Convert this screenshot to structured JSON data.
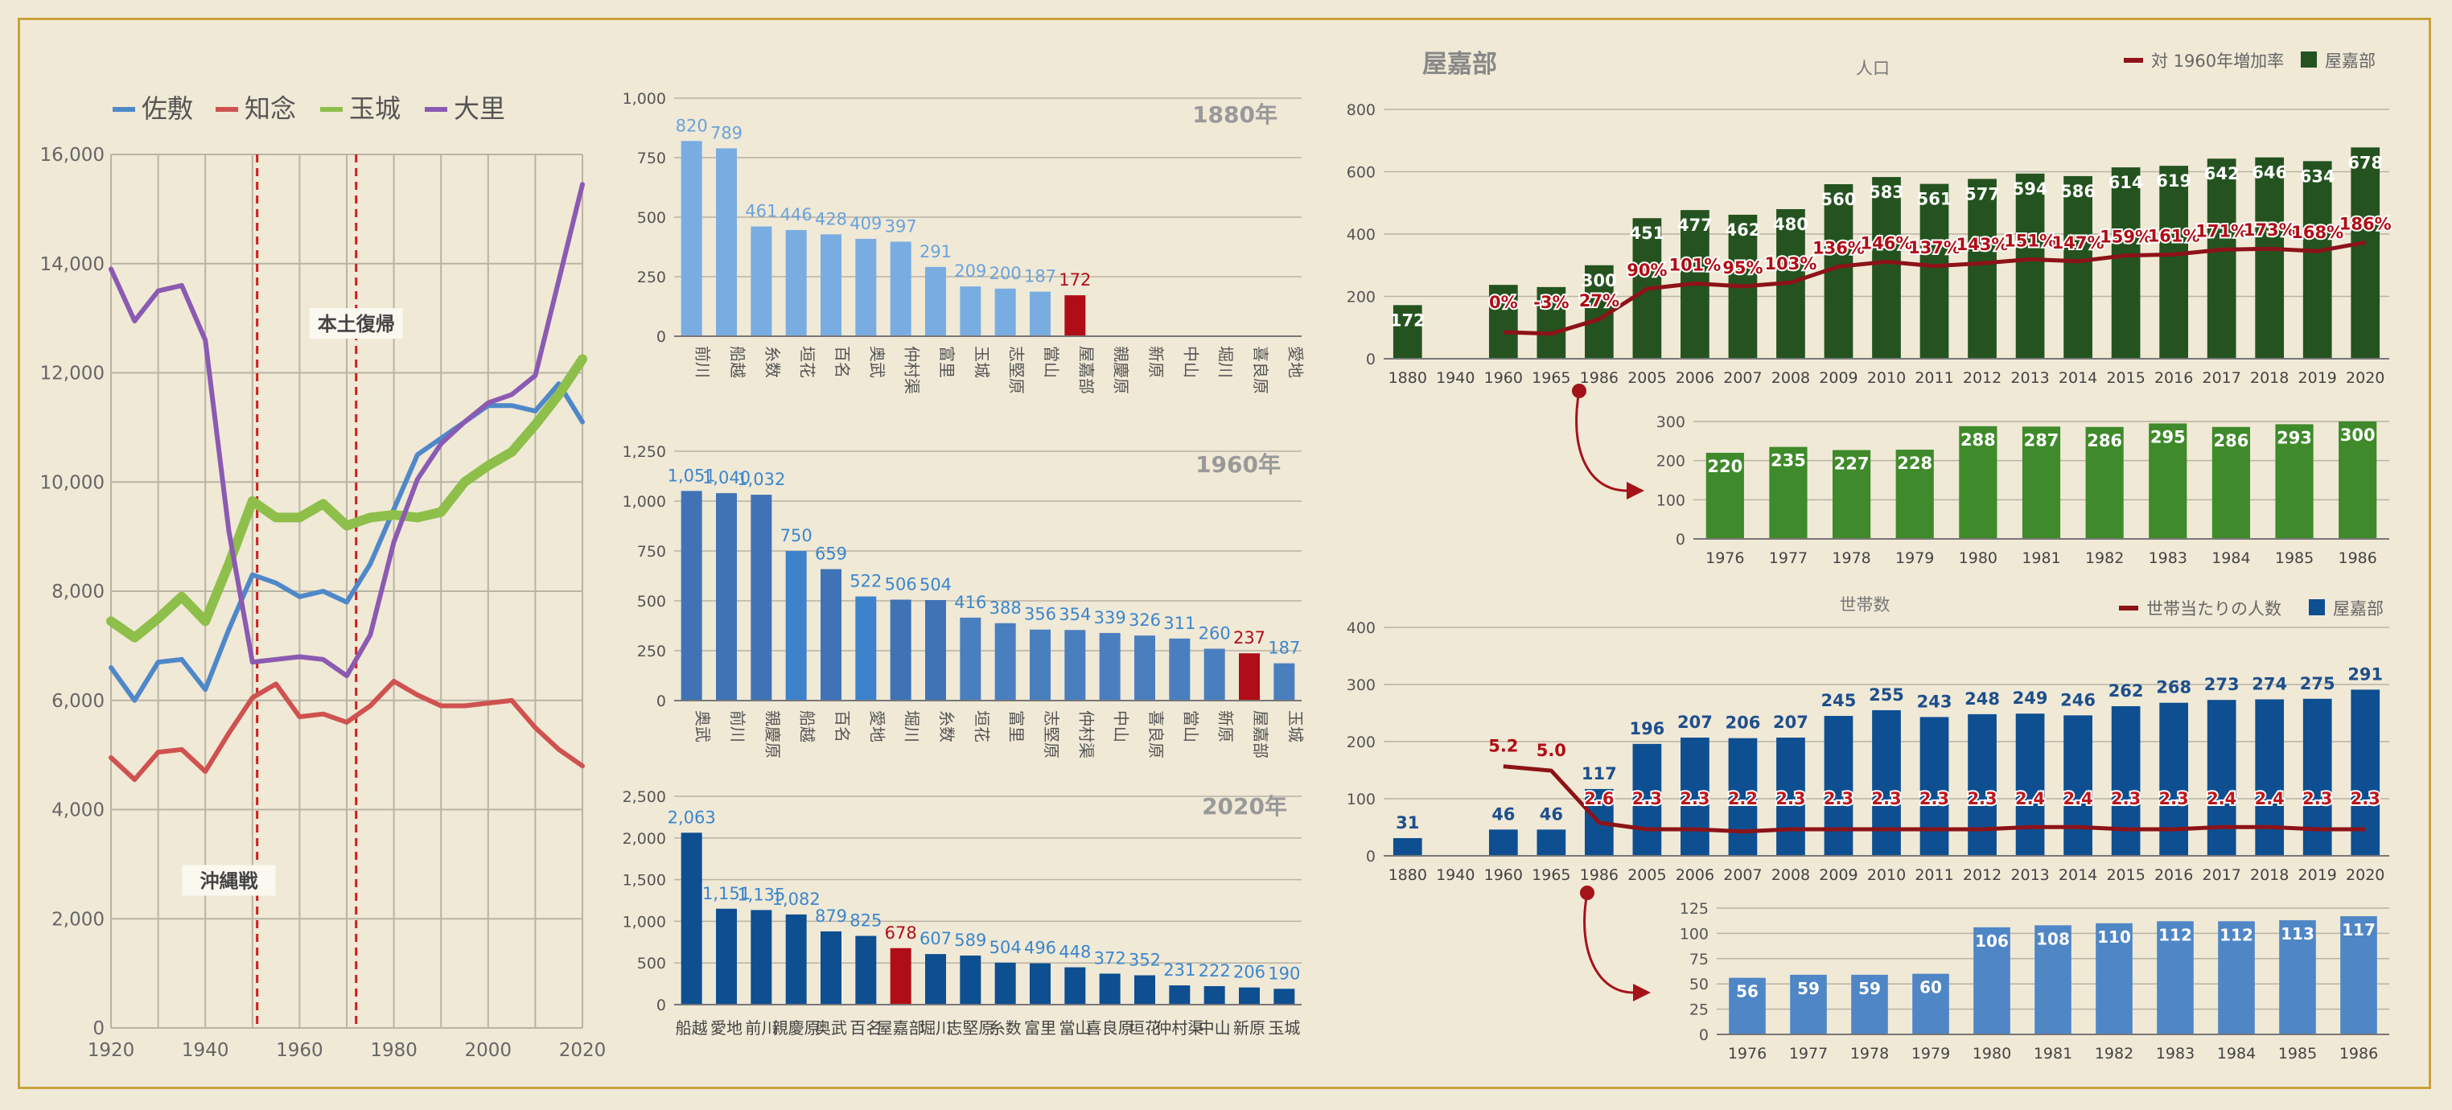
{
  "colors": {
    "background": "#f0e9d6",
    "frame": "#c9a13a",
    "highlight_red": "#b00d16",
    "grid": "#b9b3a4"
  },
  "chart_data": [
    {
      "id": "municipal-population-lines",
      "type": "line",
      "title": "",
      "xlabel": "",
      "ylabel": "",
      "xlim": [
        1920,
        2020
      ],
      "ylim": [
        0,
        16000
      ],
      "x_ticks": [
        1920,
        1940,
        1960,
        1980,
        2000,
        2020
      ],
      "x_tick_labels": [
        "1920",
        "1940",
        "1960",
        "1980",
        "2000",
        "2020"
      ],
      "y_ticks": [
        0,
        2000,
        4000,
        6000,
        8000,
        10000,
        12000,
        14000,
        16000
      ],
      "y_tick_labels": [
        "0",
        "2,000",
        "4,000",
        "6,000",
        "8,000",
        "10,000",
        "12,000",
        "14,000",
        "16,000"
      ],
      "grid": true,
      "legend_position": "top",
      "series": [
        {
          "name": "佐敷",
          "color": "#4f88c9",
          "width": 6,
          "points": [
            [
              1920,
              6600
            ],
            [
              1925,
              6000
            ],
            [
              1930,
              6700
            ],
            [
              1935,
              6750
            ],
            [
              1940,
              6200
            ],
            [
              1945,
              7300
            ],
            [
              1950,
              8300
            ],
            [
              1955,
              8150
            ],
            [
              1960,
              7900
            ],
            [
              1965,
              8000
            ],
            [
              1970,
              7800
            ],
            [
              1975,
              8500
            ],
            [
              1980,
              9500
            ],
            [
              1985,
              10500
            ],
            [
              1990,
              10800
            ],
            [
              1995,
              11100
            ],
            [
              2000,
              11400
            ],
            [
              2005,
              11400
            ],
            [
              2010,
              11300
            ],
            [
              2015,
              11800
            ],
            [
              2020,
              11100
            ]
          ]
        },
        {
          "name": "知念",
          "color": "#cf5250",
          "width": 6,
          "points": [
            [
              1920,
              4950
            ],
            [
              1925,
              4550
            ],
            [
              1930,
              5050
            ],
            [
              1935,
              5100
            ],
            [
              1940,
              4700
            ],
            [
              1945,
              5400
            ],
            [
              1950,
              6050
            ],
            [
              1955,
              6300
            ],
            [
              1960,
              5700
            ],
            [
              1965,
              5750
            ],
            [
              1970,
              5600
            ],
            [
              1975,
              5900
            ],
            [
              1980,
              6350
            ],
            [
              1985,
              6100
            ],
            [
              1990,
              5900
            ],
            [
              1995,
              5900
            ],
            [
              2000,
              5950
            ],
            [
              2005,
              6000
            ],
            [
              2010,
              5500
            ],
            [
              2015,
              5100
            ],
            [
              2020,
              4800
            ]
          ]
        },
        {
          "name": "玉城",
          "color": "#8dbf4a",
          "width": 12,
          "points": [
            [
              1920,
              7450
            ],
            [
              1925,
              7150
            ],
            [
              1930,
              7500
            ],
            [
              1935,
              7900
            ],
            [
              1940,
              7450
            ],
            [
              1945,
              8500
            ],
            [
              1950,
              9650
            ],
            [
              1955,
              9350
            ],
            [
              1960,
              9350
            ],
            [
              1965,
              9600
            ],
            [
              1970,
              9200
            ],
            [
              1975,
              9350
            ],
            [
              1980,
              9400
            ],
            [
              1985,
              9350
            ],
            [
              1990,
              9450
            ],
            [
              1995,
              10000
            ],
            [
              2000,
              10300
            ],
            [
              2005,
              10550
            ],
            [
              2010,
              11050
            ],
            [
              2015,
              11600
            ],
            [
              2020,
              12250
            ]
          ]
        },
        {
          "name": "大里",
          "color": "#8b5ab2",
          "width": 6,
          "points": [
            [
              1920,
              13900
            ],
            [
              1925,
              12950
            ],
            [
              1930,
              13500
            ],
            [
              1935,
              13600
            ],
            [
              1940,
              12600
            ],
            [
              1945,
              9100
            ],
            [
              1950,
              6700
            ],
            [
              1955,
              6750
            ],
            [
              1960,
              6800
            ],
            [
              1965,
              6750
            ],
            [
              1970,
              6450
            ],
            [
              1975,
              7200
            ],
            [
              1980,
              8900
            ],
            [
              1985,
              10050
            ],
            [
              1990,
              10700
            ],
            [
              1995,
              11100
            ],
            [
              2000,
              11450
            ],
            [
              2005,
              11600
            ],
            [
              2010,
              11950
            ],
            [
              2015,
              13700
            ],
            [
              2020,
              15450
            ]
          ]
        }
      ],
      "annotations": [
        {
          "text": "本土復帰",
          "x": 1972,
          "y": 12800
        },
        {
          "text": "沖縄戦",
          "x": 1945,
          "y": 2600
        }
      ],
      "reference_lines": [
        {
          "axis": "x",
          "value": 1951,
          "style": "dashed",
          "color": "#cc1f1f"
        },
        {
          "axis": "x",
          "value": 1972,
          "style": "dashed",
          "color": "#cc1f1f"
        }
      ]
    },
    {
      "id": "ranking-1880",
      "type": "bar",
      "title": "1880年",
      "ylim": [
        0,
        1000
      ],
      "y_ticks": [
        0,
        250,
        500,
        750,
        1000
      ],
      "y_tick_labels": [
        "0",
        "250",
        "500",
        "750",
        "1,000"
      ],
      "bar_color": "#79ade2",
      "label_color": "#6aa2da",
      "highlight_category": "屋嘉部",
      "highlight_color": "#b00d16",
      "categories": [
        "前川",
        "船越",
        "糸数",
        "垣花",
        "百名",
        "奥武",
        "仲村渠",
        "富里",
        "玉城",
        "志堅原",
        "當山",
        "屋嘉部",
        "親慶原",
        "新原",
        "中山",
        "堀川",
        "喜良原",
        "愛地"
      ],
      "values": [
        820,
        789,
        461,
        446,
        428,
        409,
        397,
        291,
        209,
        200,
        187,
        172,
        null,
        null,
        null,
        null,
        null,
        null
      ],
      "value_labels": [
        "820",
        "789",
        "461",
        "446",
        "428",
        "409",
        "397",
        "291",
        "209",
        "200",
        "187",
        "172",
        "",
        "",
        "",
        "",
        "",
        ""
      ]
    },
    {
      "id": "ranking-1960",
      "type": "bar",
      "title": "1960年",
      "ylim": [
        0,
        1250
      ],
      "y_ticks": [
        0,
        250,
        500,
        750,
        1000,
        1250
      ],
      "y_tick_labels": [
        "0",
        "250",
        "500",
        "750",
        "1,000",
        "1,250"
      ],
      "bar_colors": [
        "#3f73b5",
        "#3f73b5",
        "#3f73b5",
        "#3e82cc",
        "#3f73b5",
        "#3e82cc",
        "#3f73b5",
        "#3f73b5",
        "#4a7fbf",
        "#4a7fbf",
        "#4a7fbf",
        "#4a7fbf",
        "#4a7fbf",
        "#4a7fbf",
        "#4a7fbf",
        "#4a7fbf",
        "#b00d16",
        "#4a7fbf"
      ],
      "label_color": "#3b86cc",
      "highlight_category": "屋嘉部",
      "highlight_color": "#b00d16",
      "categories": [
        "奥武",
        "前川",
        "親慶原",
        "船越",
        "百名",
        "愛地",
        "堀川",
        "糸数",
        "垣花",
        "富里",
        "志堅原",
        "仲村渠",
        "中山",
        "喜良原",
        "當山",
        "新原",
        "屋嘉部",
        "玉城"
      ],
      "values": [
        1051,
        1040,
        1032,
        750,
        659,
        522,
        506,
        504,
        416,
        388,
        356,
        354,
        339,
        326,
        311,
        260,
        237,
        187
      ],
      "value_labels": [
        "1,051",
        "1,040",
        "1,032",
        "750",
        "659",
        "522",
        "506",
        "504",
        "416",
        "388",
        "356",
        "354",
        "339",
        "326",
        "311",
        "260",
        "237",
        "187"
      ]
    },
    {
      "id": "ranking-2020",
      "type": "bar",
      "title": "2020年",
      "ylim": [
        0,
        2500
      ],
      "y_ticks": [
        0,
        500,
        1000,
        1500,
        2000,
        2500
      ],
      "y_tick_labels": [
        "0",
        "500",
        "1,000",
        "1,500",
        "2,000",
        "2,500"
      ],
      "bar_color": "#0d4f91",
      "label_color": "#3b86cc",
      "highlight_category": "屋嘉部",
      "highlight_color": "#b00d16",
      "categories": [
        "船越",
        "愛地",
        "前川",
        "親慶原",
        "奥武",
        "百名",
        "屋嘉部",
        "堀川",
        "志堅原",
        "糸数",
        "富里",
        "當山",
        "喜良原",
        "垣花",
        "仲村渠",
        "中山",
        "新原",
        "玉城"
      ],
      "values": [
        2063,
        1151,
        1135,
        1082,
        879,
        825,
        678,
        607,
        589,
        504,
        496,
        448,
        372,
        352,
        231,
        222,
        206,
        190
      ],
      "value_labels": [
        "2,063",
        "1,151",
        "1,135",
        "1,082",
        "879",
        "825",
        "678",
        "607",
        "589",
        "504",
        "496",
        "448",
        "372",
        "352",
        "231",
        "222",
        "206",
        "190"
      ]
    },
    {
      "id": "yakabu-population",
      "type": "bar",
      "chart_label": "屋嘉部",
      "title": "人口",
      "ylim": [
        0,
        800
      ],
      "y_ticks": [
        0,
        200,
        400,
        600,
        800
      ],
      "y_tick_labels": [
        "0",
        "200",
        "400",
        "600",
        "800"
      ],
      "legend_position": "top-right",
      "legend": [
        {
          "name": "対 1960年増加率",
          "color": "#8c1318",
          "shape": "line"
        },
        {
          "name": "屋嘉部",
          "color": "#24531f",
          "shape": "square"
        }
      ],
      "bar_color": "#24531f",
      "categories": [
        "1880",
        "1940",
        "1960",
        "1965",
        "1986",
        "2005",
        "2006",
        "2007",
        "2008",
        "2009",
        "2010",
        "2011",
        "2012",
        "2013",
        "2014",
        "2015",
        "2016",
        "2017",
        "2018",
        "2019",
        "2020"
      ],
      "values": [
        172,
        null,
        237,
        230,
        300,
        451,
        477,
        462,
        480,
        560,
        583,
        561,
        577,
        594,
        586,
        614,
        619,
        642,
        646,
        634,
        678
      ],
      "value_labels": [
        "172",
        "",
        "",
        "",
        "300",
        "451",
        "477",
        "462",
        "480",
        "560",
        "583",
        "561",
        "577",
        "594",
        "586",
        "614",
        "619",
        "642",
        "646",
        "634",
        "678"
      ],
      "line_series": {
        "name": "対 1960年増加率",
        "color": "#8c1318",
        "values": [
          null,
          null,
          0,
          -3,
          27,
          90,
          101,
          95,
          103,
          136,
          146,
          137,
          143,
          151,
          147,
          159,
          161,
          171,
          173,
          168,
          186
        ],
        "value_labels": [
          "",
          "",
          "0%",
          "-3%",
          "27%",
          "90%",
          "101%",
          "95%",
          "103%",
          "136%",
          "146%",
          "137%",
          "143%",
          "151%",
          "147%",
          "159%",
          "161%",
          "171%",
          "173%",
          "168%",
          "186%"
        ]
      }
    },
    {
      "id": "yakabu-population-detail",
      "type": "bar",
      "ylim": [
        0,
        300
      ],
      "y_ticks": [
        0,
        100,
        200,
        300
      ],
      "y_tick_labels": [
        "0",
        "100",
        "200",
        "300"
      ],
      "bar_color": "#3f8a2a",
      "categories": [
        "1976",
        "1977",
        "1978",
        "1979",
        "1980",
        "1981",
        "1982",
        "1983",
        "1984",
        "1985",
        "1986"
      ],
      "values": [
        220,
        235,
        227,
        228,
        288,
        287,
        286,
        295,
        286,
        293,
        300
      ],
      "value_labels": [
        "220",
        "235",
        "227",
        "228",
        "288",
        "287",
        "286",
        "295",
        "286",
        "293",
        "300"
      ]
    },
    {
      "id": "yakabu-households",
      "type": "bar",
      "title": "世帯数",
      "ylim": [
        0,
        400
      ],
      "y_ticks": [
        0,
        100,
        200,
        300,
        400
      ],
      "y_tick_labels": [
        "0",
        "100",
        "200",
        "300",
        "400"
      ],
      "legend_position": "top-right",
      "legend": [
        {
          "name": "世帯当たりの人数",
          "color": "#8c1318",
          "shape": "line"
        },
        {
          "name": "屋嘉部",
          "color": "#0d4f91",
          "shape": "square"
        }
      ],
      "bar_color": "#0d4f91",
      "categories": [
        "1880",
        "1940",
        "1960",
        "1965",
        "1986",
        "2005",
        "2006",
        "2007",
        "2008",
        "2009",
        "2010",
        "2011",
        "2012",
        "2013",
        "2014",
        "2015",
        "2016",
        "2017",
        "2018",
        "2019",
        "2020"
      ],
      "values": [
        31,
        null,
        46,
        46,
        117,
        196,
        207,
        206,
        207,
        245,
        255,
        243,
        248,
        249,
        246,
        262,
        268,
        273,
        274,
        275,
        291
      ],
      "value_labels": [
        "31",
        "",
        "46",
        "46",
        "117",
        "196",
        "207",
        "206",
        "207",
        "245",
        "255",
        "243",
        "248",
        "249",
        "246",
        "262",
        "268",
        "273",
        "274",
        "275",
        "291"
      ],
      "line_series": {
        "name": "世帯当たりの人数",
        "color": "#8c1318",
        "values": [
          null,
          null,
          5.2,
          5.0,
          2.6,
          2.3,
          2.3,
          2.2,
          2.3,
          2.3,
          2.3,
          2.3,
          2.3,
          2.4,
          2.4,
          2.3,
          2.3,
          2.4,
          2.4,
          2.3,
          2.3
        ],
        "value_labels": [
          "",
          "",
          "5.2",
          "5.0",
          "2.6",
          "2.3",
          "2.3",
          "2.2",
          "2.3",
          "2.3",
          "2.3",
          "2.3",
          "2.3",
          "2.4",
          "2.4",
          "2.3",
          "2.3",
          "2.4",
          "2.4",
          "2.3",
          "2.3"
        ]
      }
    },
    {
      "id": "yakabu-households-detail",
      "type": "bar",
      "ylim": [
        0,
        125
      ],
      "y_ticks": [
        0,
        25,
        50,
        75,
        100,
        125
      ],
      "y_tick_labels": [
        "0",
        "25",
        "50",
        "75",
        "100",
        "125"
      ],
      "bar_color": "#4f86c6",
      "categories": [
        "1976",
        "1977",
        "1978",
        "1979",
        "1980",
        "1981",
        "1982",
        "1983",
        "1984",
        "1985",
        "1986"
      ],
      "values": [
        56,
        59,
        59,
        60,
        106,
        108,
        110,
        112,
        112,
        113,
        117
      ],
      "value_labels": [
        "56",
        "59",
        "59",
        "60",
        "106",
        "108",
        "110",
        "112",
        "112",
        "113",
        "117"
      ]
    }
  ]
}
